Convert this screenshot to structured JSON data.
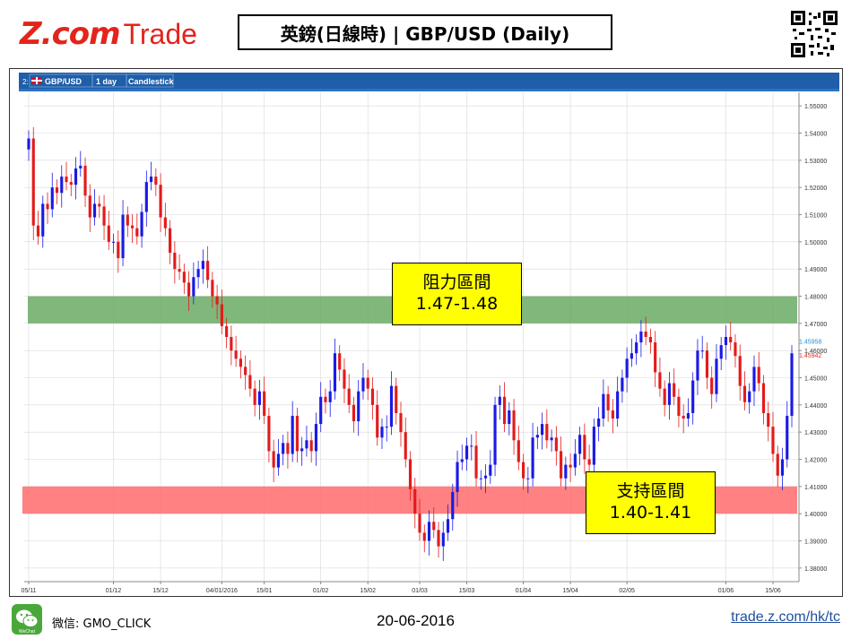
{
  "header": {
    "logo_z": "Z.com",
    "logo_trade": "Trade",
    "title": "英鎊(日線時) | GBP/USD  (Daily)"
  },
  "toolbar": {
    "prefix": "2:",
    "symbol": "GBP/USD",
    "period": "1 day",
    "style": "Candlestick"
  },
  "zones": {
    "resistance": {
      "label": "阻力區間",
      "range": "1.47-1.48",
      "low": 1.47,
      "high": 1.48,
      "color": "#6aaa64"
    },
    "support": {
      "label": "支持區間",
      "range": "1.40-1.41",
      "low": 1.4,
      "high": 1.41,
      "color": "#ff6b6b"
    }
  },
  "price_tags": {
    "upper": "1.45958",
    "lower": "1.45942",
    "upper_color": "#1f8fd6",
    "lower_color": "#e3241b"
  },
  "colors": {
    "up": "#1a1ae6",
    "down": "#e31b1b",
    "grid": "#d8d8d8",
    "toolbar": "#1f5ea8"
  },
  "footer": {
    "wechat_label": "微信: GMO_CLICK",
    "wechat_icon_text": "WeChat",
    "date": "20-06-2016",
    "link": "trade.z.com/hk/tc"
  },
  "chart_data": {
    "type": "candlestick",
    "ylim": [
      1.375,
      1.555
    ],
    "y_ticks": [
      "1.55000",
      "1.54000",
      "1.53000",
      "1.52000",
      "1.51000",
      "1.50000",
      "1.49000",
      "1.48000",
      "1.47000",
      "1.46000",
      "1.45000",
      "1.44000",
      "1.43000",
      "1.42000",
      "1.41000",
      "1.40000",
      "1.39000",
      "1.38000"
    ],
    "x_ticks": [
      {
        "label": "05/11",
        "i": 0
      },
      {
        "label": "01/12",
        "i": 18
      },
      {
        "label": "15/12",
        "i": 28
      },
      {
        "label": "04/01/2016",
        "i": 41
      },
      {
        "label": "15/01",
        "i": 50
      },
      {
        "label": "01/02",
        "i": 62
      },
      {
        "label": "15/02",
        "i": 72
      },
      {
        "label": "01/03",
        "i": 83
      },
      {
        "label": "15/03",
        "i": 93
      },
      {
        "label": "01/04",
        "i": 105
      },
      {
        "label": "15/04",
        "i": 115
      },
      {
        "label": "02/05",
        "i": 127
      },
      {
        "label": "01/06",
        "i": 148
      },
      {
        "label": "15/06",
        "i": 158
      }
    ],
    "close": [
      1.538,
      1.506,
      1.502,
      1.514,
      1.512,
      1.52,
      1.518,
      1.524,
      1.522,
      1.521,
      1.527,
      1.528,
      1.517,
      1.509,
      1.514,
      1.513,
      1.506,
      1.5,
      1.5,
      1.494,
      1.51,
      1.506,
      1.505,
      1.502,
      1.511,
      1.522,
      1.524,
      1.521,
      1.509,
      1.505,
      1.496,
      1.49,
      1.489,
      1.485,
      1.48,
      1.487,
      1.49,
      1.493,
      1.486,
      1.48,
      1.477,
      1.469,
      1.465,
      1.46,
      1.457,
      1.454,
      1.451,
      1.446,
      1.44,
      1.445,
      1.436,
      1.423,
      1.417,
      1.422,
      1.426,
      1.422,
      1.436,
      1.423,
      1.424,
      1.427,
      1.423,
      1.433,
      1.443,
      1.441,
      1.445,
      1.459,
      1.453,
      1.446,
      1.44,
      1.434,
      1.445,
      1.45,
      1.446,
      1.44,
      1.428,
      1.432,
      1.432,
      1.447,
      1.437,
      1.43,
      1.42,
      1.409,
      1.4,
      1.393,
      1.39,
      1.397,
      1.394,
      1.388,
      1.393,
      1.398,
      1.408,
      1.419,
      1.42,
      1.425,
      1.425,
      1.413,
      1.413,
      1.414,
      1.418,
      1.44,
      1.443,
      1.433,
      1.438,
      1.427,
      1.419,
      1.413,
      1.413,
      1.428,
      1.429,
      1.433,
      1.427,
      1.428,
      1.423,
      1.413,
      1.418,
      1.417,
      1.422,
      1.429,
      1.42,
      1.418,
      1.432,
      1.435,
      1.444,
      1.438,
      1.435,
      1.445,
      1.45,
      1.457,
      1.459,
      1.463,
      1.467,
      1.465,
      1.463,
      1.452,
      1.446,
      1.44,
      1.448,
      1.443,
      1.436,
      1.435,
      1.437,
      1.449,
      1.46,
      1.46,
      1.45,
      1.444,
      1.457,
      1.462,
      1.465,
      1.463,
      1.458,
      1.447,
      1.441,
      1.445,
      1.454,
      1.448,
      1.437,
      1.432,
      1.422,
      1.414,
      1.42,
      1.436,
      1.459
    ]
  }
}
